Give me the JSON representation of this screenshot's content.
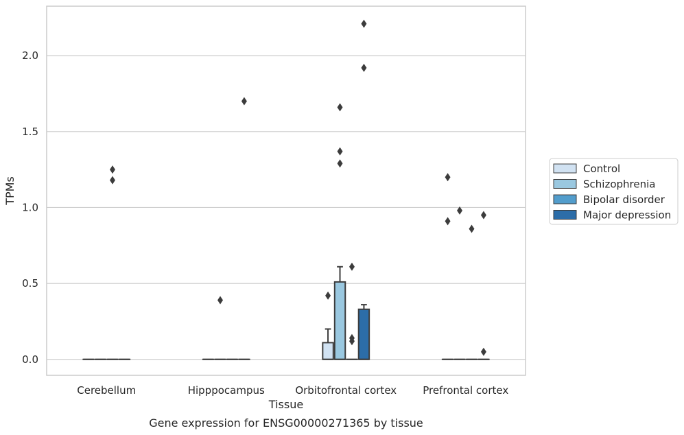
{
  "caption": "Gene expression for ENSG00000271365 by tissue",
  "chart_data": {
    "type": "box",
    "xlabel": "Tissue",
    "ylabel": "TPMs",
    "categories": [
      "Cerebellum",
      "Hipppocampus",
      "Orbitofrontal cortex",
      "Prefrontal cortex"
    ],
    "y_ticks": [
      "0.0",
      "0.5",
      "1.0",
      "1.5",
      "2.0"
    ],
    "ylim": [
      -0.105,
      2.326
    ],
    "grid": "horizontal",
    "legend_position": "right",
    "series": [
      {
        "name": "Control",
        "color": "#d1e2f2",
        "boxes": [
          {
            "q1": 0,
            "q3": 0,
            "median": 0,
            "whisker_low": 0,
            "whisker_high": 0
          },
          {
            "q1": 0,
            "q3": 0,
            "median": 0,
            "whisker_low": 0,
            "whisker_high": 0
          },
          {
            "q1": 0,
            "q3": 0.11,
            "median": 0,
            "whisker_low": 0,
            "whisker_high": 0.2
          },
          {
            "q1": 0,
            "q3": 0,
            "median": 0,
            "whisker_low": 0,
            "whisker_high": 0
          }
        ],
        "outliers": [
          [],
          [],
          [
            0.42
          ],
          [
            1.2,
            0.91
          ]
        ]
      },
      {
        "name": "Schizophrenia",
        "color": "#9ac8e0",
        "boxes": [
          {
            "q1": 0,
            "q3": 0,
            "median": 0,
            "whisker_low": 0,
            "whisker_high": 0
          },
          {
            "q1": 0,
            "q3": 0,
            "median": 0,
            "whisker_low": 0,
            "whisker_high": 0
          },
          {
            "q1": 0,
            "q3": 0.51,
            "median": 0,
            "whisker_low": 0,
            "whisker_high": 0.61
          },
          {
            "q1": 0,
            "q3": 0,
            "median": 0,
            "whisker_low": 0,
            "whisker_high": 0
          }
        ],
        "outliers": [
          [],
          [
            0.39
          ],
          [
            1.66,
            1.37,
            1.29
          ],
          [
            0.98
          ]
        ]
      },
      {
        "name": "Bipolar disorder",
        "color": "#529dcc",
        "boxes": [
          {
            "q1": 0,
            "q3": 0,
            "median": 0,
            "whisker_low": 0,
            "whisker_high": 0
          },
          {
            "q1": 0,
            "q3": 0,
            "median": 0,
            "whisker_low": 0,
            "whisker_high": 0
          },
          {
            "q1": 0,
            "q3": 0,
            "median": 0,
            "whisker_low": 0,
            "whisker_high": 0
          },
          {
            "q1": 0,
            "q3": 0,
            "median": 0,
            "whisker_low": 0,
            "whisker_high": 0
          }
        ],
        "outliers": [
          [
            1.25,
            1.18
          ],
          [],
          [
            0.61,
            0.14,
            0.12
          ],
          [
            0.86
          ]
        ]
      },
      {
        "name": "Major depression",
        "color": "#2c6da8",
        "boxes": [
          {
            "q1": 0,
            "q3": 0,
            "median": 0,
            "whisker_low": 0,
            "whisker_high": 0
          },
          {
            "q1": 0,
            "q3": 0,
            "median": 0,
            "whisker_low": 0,
            "whisker_high": 0
          },
          {
            "q1": 0,
            "q3": 0.33,
            "median": 0,
            "whisker_low": 0,
            "whisker_high": 0.36
          },
          {
            "q1": 0,
            "q3": 0,
            "median": 0,
            "whisker_low": 0,
            "whisker_high": 0
          }
        ],
        "outliers": [
          [],
          [
            1.7
          ],
          [
            2.21,
            1.92
          ],
          [
            0.95,
            0.05
          ]
        ]
      }
    ]
  }
}
